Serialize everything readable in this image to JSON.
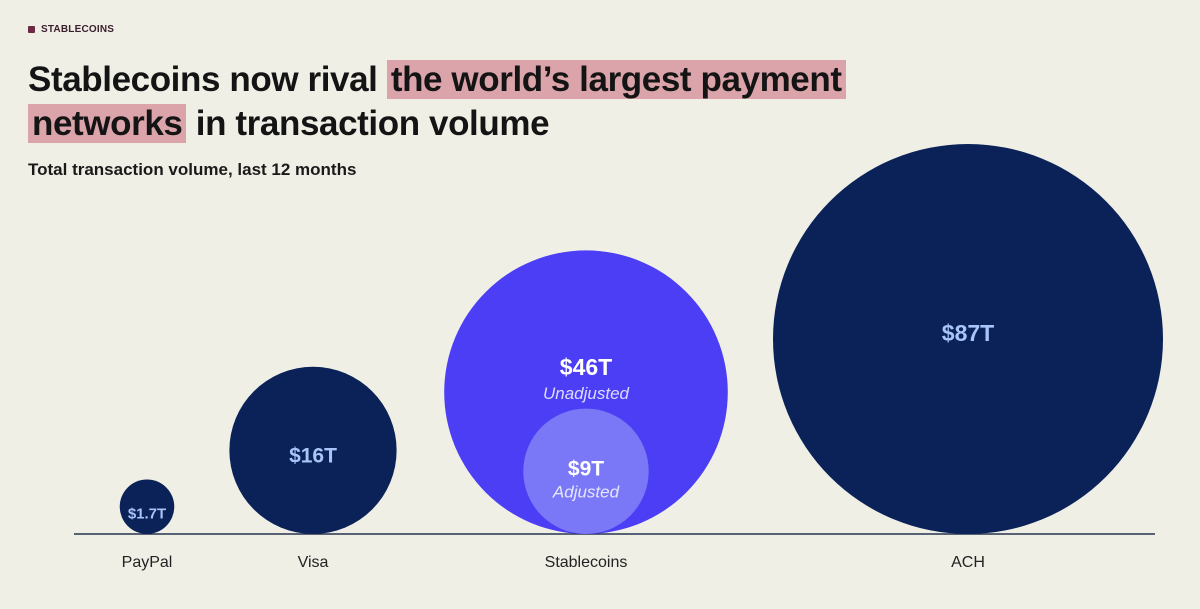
{
  "tag": "STABLECOINS",
  "title": {
    "before": "Stablecoins now rival ",
    "highlight1": "the world’s largest payment",
    "highlight2": "networks",
    "after": " in transaction volume"
  },
  "colors": {
    "background": "#f0efe6",
    "highlight": "#dba3aa",
    "navy": "#0a2257",
    "purple": "#4b3ef5",
    "lavender": "#7a78f6",
    "value_label": "#a9c4f7"
  },
  "chart_data": {
    "type": "bubble",
    "subtitle": "Total transaction volume, last 12 months",
    "unit": "trillion USD",
    "categories": [
      "PayPal",
      "Visa",
      "Stablecoins",
      "ACH"
    ],
    "bubbles": [
      {
        "category": "PayPal",
        "value": 1.7,
        "label": "$1.7T",
        "color": "#0a2257"
      },
      {
        "category": "Visa",
        "value": 16,
        "label": "$16T",
        "color": "#0a2257"
      },
      {
        "category": "Stablecoins",
        "value": 46,
        "label": "$46T",
        "sublabel": "Unadjusted",
        "color": "#4b3ef5",
        "inner": {
          "value": 9,
          "label": "$9T",
          "sublabel": "Adjusted",
          "color": "#7a78f6"
        }
      },
      {
        "category": "ACH",
        "value": 87,
        "label": "$87T",
        "color": "#0a2257"
      }
    ]
  }
}
